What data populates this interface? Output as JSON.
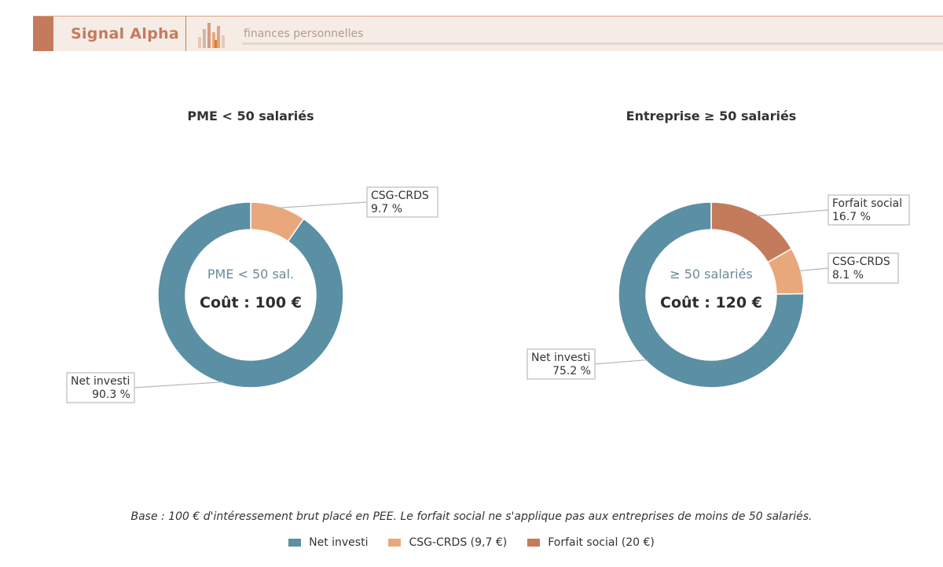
{
  "header": {
    "brand": "Signal Alpha",
    "tagline": "finances personnelles",
    "logo_icon": "bar-chart-logo-icon",
    "colors": {
      "accent": "#c47b5c",
      "band": "#f6ece6"
    }
  },
  "chart_data": [
    {
      "type": "pie",
      "variant": "donut",
      "title": "PME < 50 salariés",
      "center_label": "PME < 50 sal.",
      "center_total": "Coût : 100 €",
      "slices": [
        {
          "label": "CSG-CRDS",
          "value": 9.7,
          "pct_label": "9.7 %",
          "color": "#e8a87c"
        },
        {
          "label": "Net investi",
          "value": 90.3,
          "pct_label": "90.3 %",
          "color": "#5b8fa3"
        }
      ]
    },
    {
      "type": "pie",
      "variant": "donut",
      "title": "Entreprise ≥ 50 salariés",
      "center_label": "≥ 50 salariés",
      "center_total": "Coût : 120 €",
      "slices": [
        {
          "label": "Forfait social",
          "value": 16.7,
          "pct_label": "16.7 %",
          "color": "#c47b5c"
        },
        {
          "label": "CSG-CRDS",
          "value": 8.1,
          "pct_label": "8.1 %",
          "color": "#e8a87c"
        },
        {
          "label": "Net investi",
          "value": 75.2,
          "pct_label": "75.2 %",
          "color": "#5b8fa3"
        }
      ]
    }
  ],
  "caption": "Base : 100 € d'intéressement brut placé en PEE. Le forfait social ne s'applique pas aux entreprises de moins de 50 salariés.",
  "legend": [
    {
      "label": "Net investi",
      "color": "#5b8fa3"
    },
    {
      "label": "CSG-CRDS (9,7 €)",
      "color": "#e8a87c"
    },
    {
      "label": "Forfait social (20 €)",
      "color": "#c47b5c"
    }
  ]
}
